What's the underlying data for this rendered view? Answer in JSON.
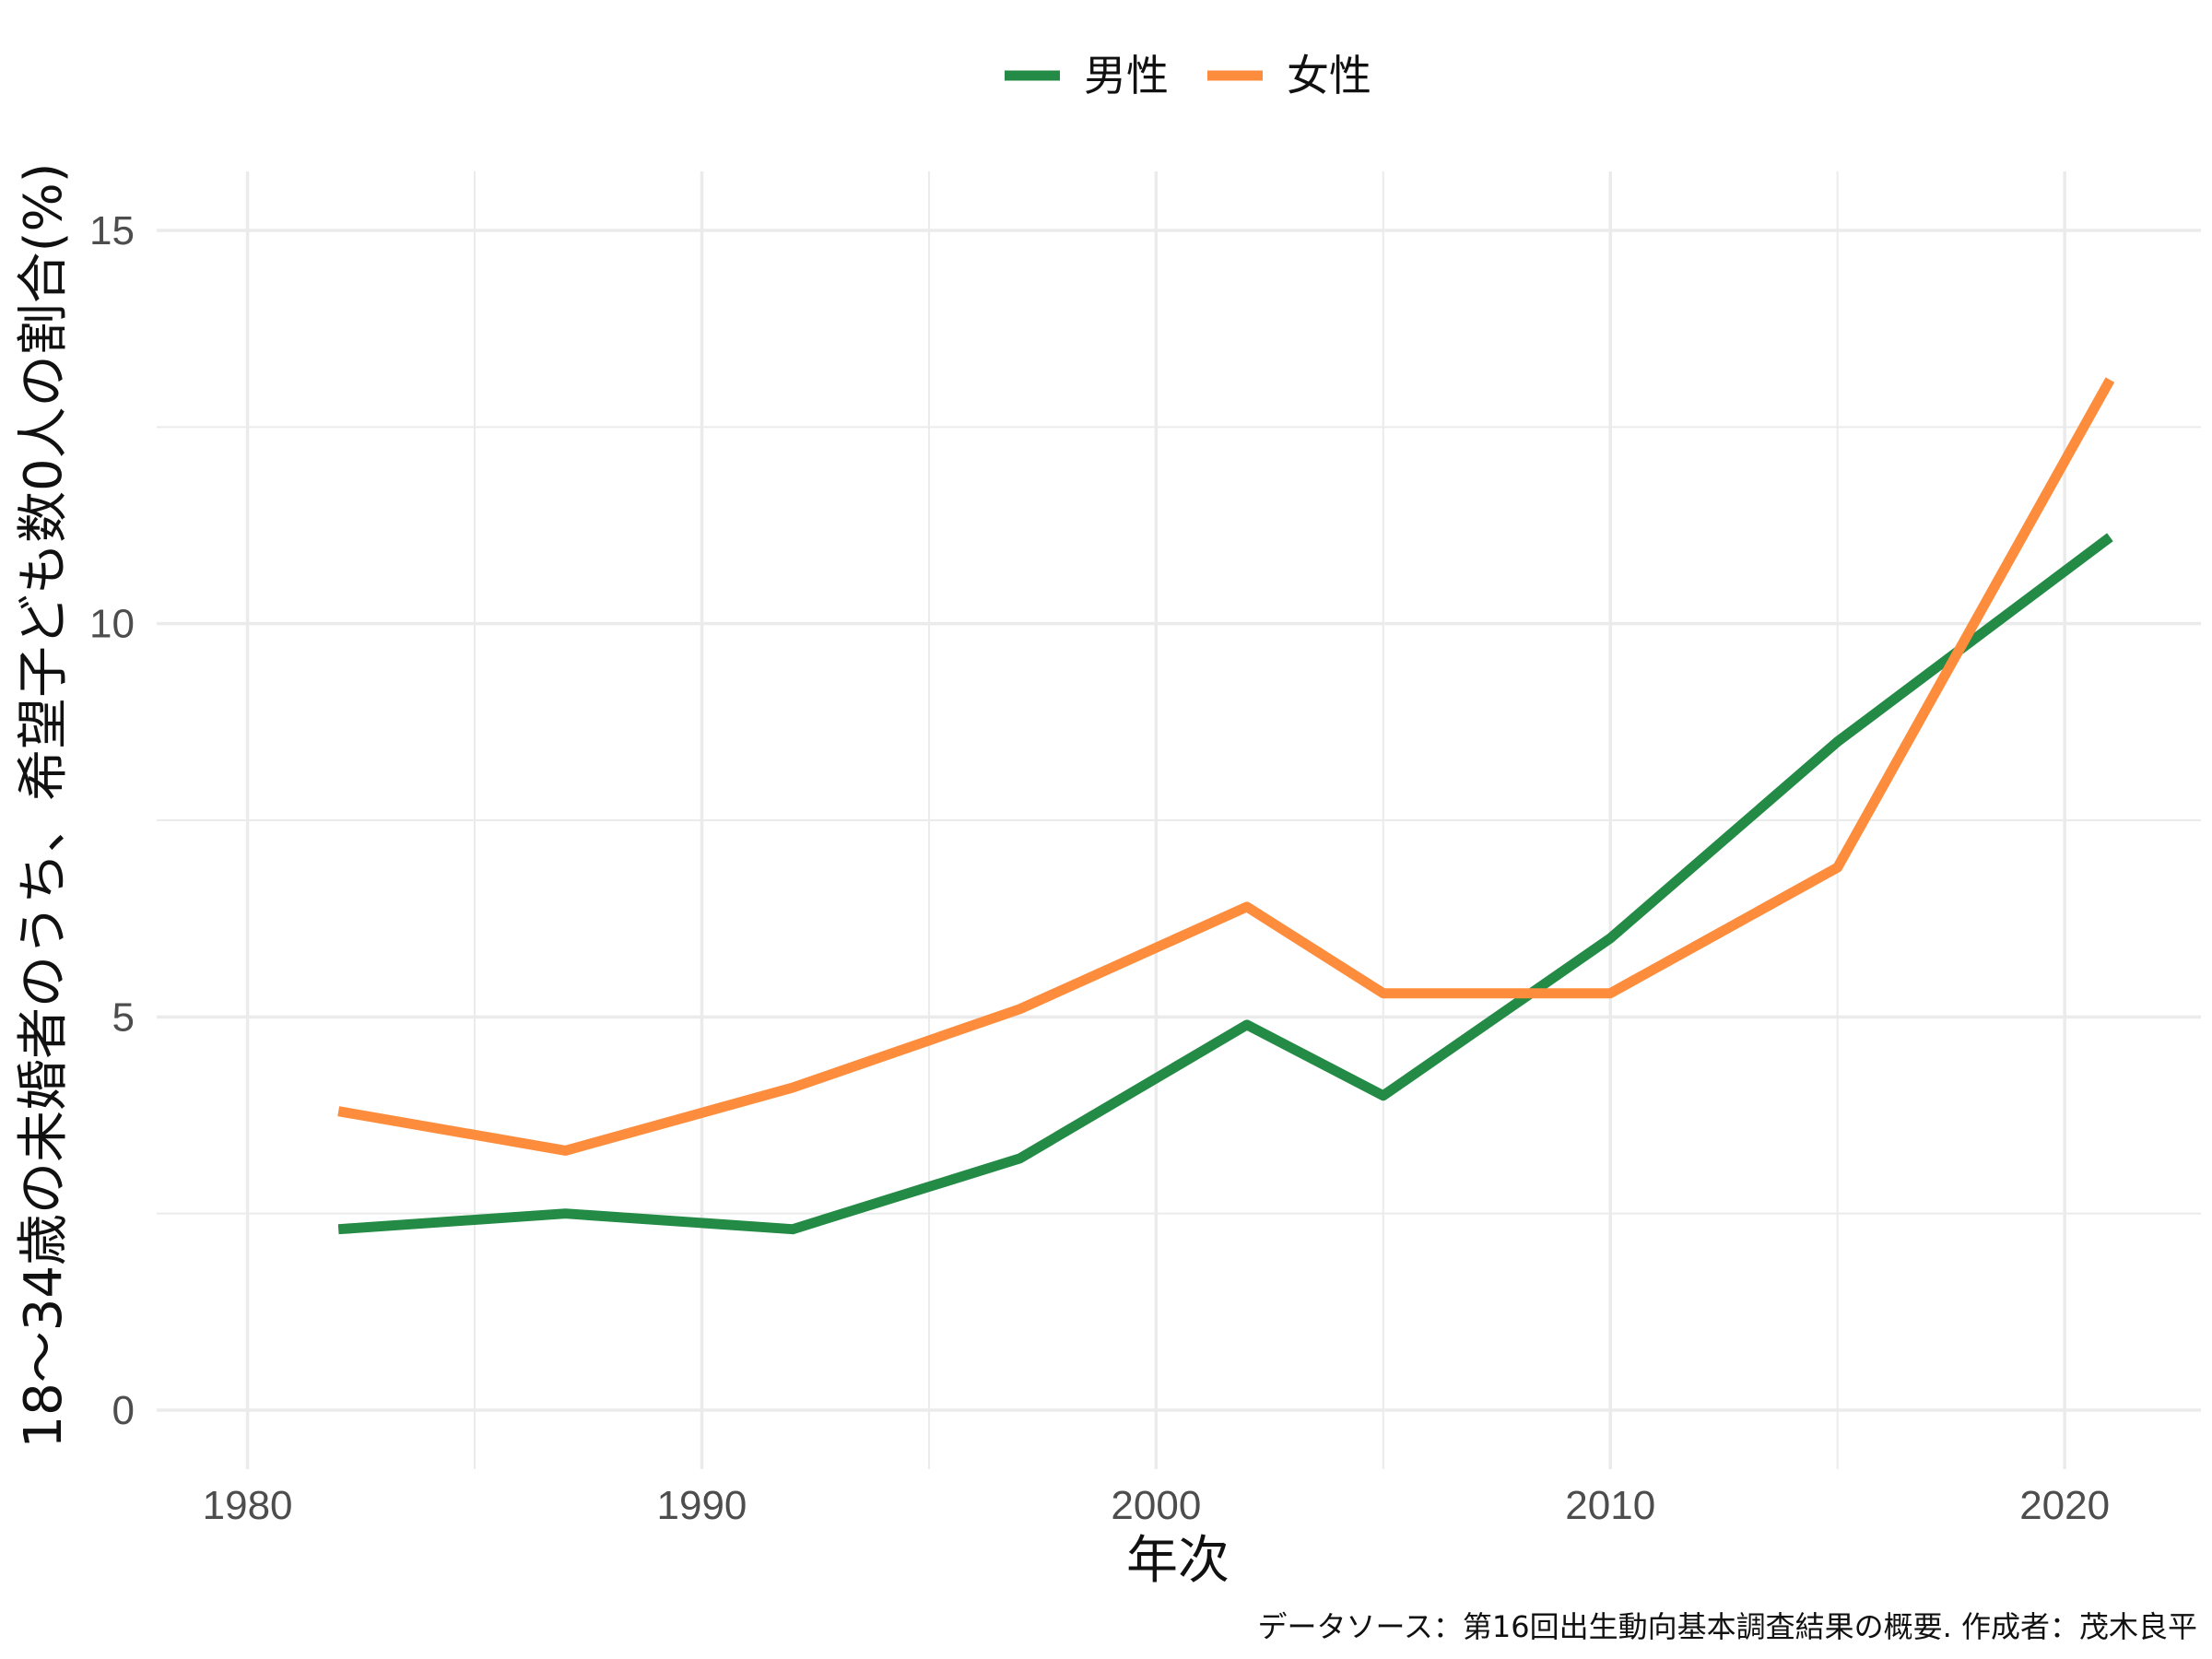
{
  "chart_data": {
    "type": "line",
    "x": [
      1982,
      1987,
      1992,
      1997,
      2002,
      2005,
      2010,
      2015,
      2021
    ],
    "series": [
      {
        "name": "男性",
        "color": "#238b45",
        "values": [
          2.3,
          2.5,
          2.3,
          3.2,
          4.9,
          4.0,
          6.0,
          8.5,
          11.1
        ]
      },
      {
        "name": "女性",
        "color": "#fd8d3c",
        "values": [
          3.8,
          3.3,
          4.1,
          5.1,
          6.4,
          5.3,
          5.3,
          6.9,
          13.1
        ]
      }
    ],
    "xlabel": "年次",
    "ylabel": "18〜34歳の未婚者のうち、希望子ども数0人の割合(%)",
    "caption": "データソース：第16回出生動向基本調査結果の概要. 作成者：茂木良平",
    "xlim": [
      1978,
      2023
    ],
    "ylim": [
      -0.75,
      15.75
    ],
    "x_ticks": [
      1980,
      1990,
      2000,
      2010,
      2020
    ],
    "x_tick_labels": [
      "1980",
      "1990",
      "2000",
      "2010",
      "2020"
    ],
    "y_ticks": [
      0,
      5,
      10,
      15
    ],
    "y_tick_labels": [
      "0",
      "5",
      "10",
      "15"
    ],
    "grid": true,
    "legend_position": "top"
  }
}
